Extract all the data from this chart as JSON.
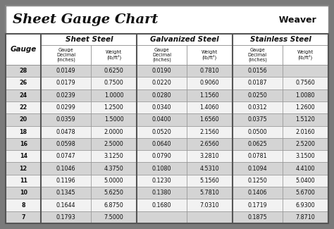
{
  "title": "Sheet Gauge Chart",
  "bg_outer": "#7a7a7a",
  "bg_inner": "#f2f2f2",
  "row_colors": [
    "#d4d4d4",
    "#f2f2f2"
  ],
  "gauges": [
    28,
    26,
    24,
    22,
    20,
    18,
    16,
    14,
    12,
    11,
    10,
    8,
    7
  ],
  "sheet_steel_decimal": [
    "0.0149",
    "0.0179",
    "0.0239",
    "0.0299",
    "0.0359",
    "0.0478",
    "0.0598",
    "0.0747",
    "0.1046",
    "0.1196",
    "0.1345",
    "0.1644",
    "0.1793"
  ],
  "sheet_steel_weight": [
    "0.6250",
    "0.7500",
    "1.0000",
    "1.2500",
    "1.5000",
    "2.0000",
    "2.5000",
    "3.1250",
    "4.3750",
    "5.0000",
    "5.6250",
    "6.8750",
    "7.5000"
  ],
  "galv_steel_decimal": [
    "0.0190",
    "0.0220",
    "0.0280",
    "0.0340",
    "0.0400",
    "0.0520",
    "0.0640",
    "0.0790",
    "0.1080",
    "0.1230",
    "0.1380",
    "0.1680",
    ""
  ],
  "galv_steel_weight": [
    "0.7810",
    "0.9060",
    "1.1560",
    "1.4060",
    "1.6560",
    "2.1560",
    "2.6560",
    "3.2810",
    "4.5310",
    "5.1560",
    "5.7810",
    "7.0310",
    ""
  ],
  "stainless_decimal": [
    "0.0156",
    "0.0187",
    "0.0250",
    "0.0312",
    "0.0375",
    "0.0500",
    "0.0625",
    "0.0781",
    "0.1094",
    "0.1250",
    "0.1406",
    "0.1719",
    "0.1875"
  ],
  "stainless_weight": [
    "",
    "0.7560",
    "1.0080",
    "1.2600",
    "1.5120",
    "2.0160",
    "2.5200",
    "3.1500",
    "4.4100",
    "5.0400",
    "5.6700",
    "6.9300",
    "7.8710"
  ]
}
